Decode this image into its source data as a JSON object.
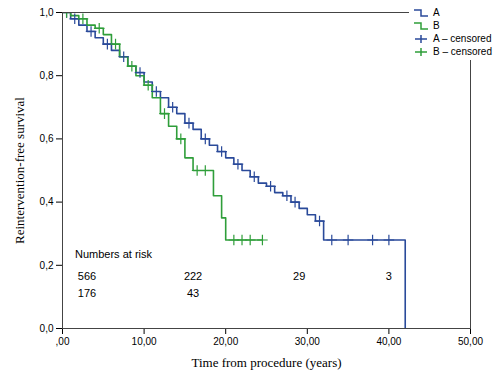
{
  "chart_data": {
    "type": "line",
    "x_label": "Time from procedure (years)",
    "y_label": "Reintervention-free survival",
    "xlim": [
      0,
      50
    ],
    "ylim": [
      0,
      1
    ],
    "xticks": [
      {
        "value": 0,
        "label": ",00"
      },
      {
        "value": 10,
        "label": "10,00"
      },
      {
        "value": 20,
        "label": "20,00"
      },
      {
        "value": 30,
        "label": "30,00"
      },
      {
        "value": 40,
        "label": "40,00"
      },
      {
        "value": 50,
        "label": "50,00"
      }
    ],
    "yticks": [
      {
        "value": 0,
        "label": "0,0"
      },
      {
        "value": 0.2,
        "label": "0,2"
      },
      {
        "value": 0.4,
        "label": "0,4"
      },
      {
        "value": 0.6,
        "label": "0,6"
      },
      {
        "value": 0.8,
        "label": "0,8"
      },
      {
        "value": 1,
        "label": "1,0"
      }
    ],
    "legend": "top-right",
    "series": [
      {
        "name": "A",
        "type": "line",
        "line_style": "step",
        "color": "#2a4a9a",
        "x": [
          0,
          1,
          2,
          3,
          4,
          5,
          6,
          7,
          8,
          9,
          10,
          11,
          12,
          13,
          14,
          15,
          16,
          17,
          18,
          19,
          20,
          21,
          22,
          23,
          24,
          25,
          26,
          27,
          28,
          29,
          30,
          31,
          32,
          42,
          42
        ],
        "values": [
          1.0,
          0.98,
          0.96,
          0.94,
          0.92,
          0.9,
          0.88,
          0.86,
          0.83,
          0.81,
          0.78,
          0.75,
          0.73,
          0.7,
          0.68,
          0.65,
          0.63,
          0.6,
          0.58,
          0.56,
          0.54,
          0.52,
          0.5,
          0.48,
          0.46,
          0.45,
          0.43,
          0.42,
          0.4,
          0.38,
          0.36,
          0.34,
          0.28,
          0.28,
          0.0
        ]
      },
      {
        "name": "B",
        "type": "line",
        "line_style": "step",
        "color": "#2f9e3a",
        "x": [
          0,
          1,
          2,
          3,
          4,
          5,
          6,
          7,
          8,
          9,
          10,
          11,
          12,
          13,
          14,
          15,
          16,
          18.5,
          19.5,
          20,
          24.5
        ],
        "values": [
          1.0,
          0.99,
          0.98,
          0.96,
          0.95,
          0.93,
          0.9,
          0.86,
          0.83,
          0.8,
          0.77,
          0.73,
          0.68,
          0.64,
          0.6,
          0.54,
          0.5,
          0.42,
          0.35,
          0.28,
          0.28
        ]
      },
      {
        "name": "A – censored",
        "type": "scatter",
        "marker": "plus",
        "color": "#2a4a9a",
        "x": [
          0.5,
          1.5,
          3.5,
          5.5,
          7.5,
          9.5,
          11.5,
          13.5,
          15.5,
          17.5,
          19.5,
          21.5,
          23.5,
          25.5,
          27.5,
          28.5,
          31.5,
          33,
          35,
          38,
          40
        ],
        "values": [
          1.0,
          0.98,
          0.94,
          0.9,
          0.86,
          0.81,
          0.75,
          0.7,
          0.65,
          0.6,
          0.56,
          0.52,
          0.48,
          0.45,
          0.42,
          0.4,
          0.34,
          0.28,
          0.28,
          0.28,
          0.28
        ]
      },
      {
        "name": "B – censored",
        "type": "scatter",
        "marker": "plus",
        "color": "#2f9e3a",
        "x": [
          0.5,
          2.5,
          4.5,
          6.5,
          8.5,
          10.5,
          12.5,
          14.5,
          16.5,
          17.5,
          21,
          22,
          23,
          24.5
        ],
        "values": [
          1.0,
          0.98,
          0.95,
          0.9,
          0.83,
          0.77,
          0.68,
          0.6,
          0.5,
          0.5,
          0.28,
          0.28,
          0.28,
          0.28
        ]
      }
    ],
    "numbers_at_risk": {
      "title": "Numbers at risk",
      "times": [
        3,
        16,
        29,
        40
      ],
      "rows": [
        [
          566,
          222,
          29,
          3
        ],
        [
          176,
          43
        ]
      ]
    }
  }
}
